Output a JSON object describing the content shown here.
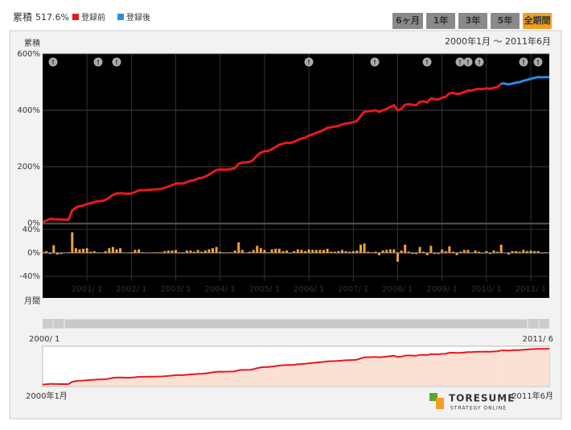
{
  "header": {
    "label": "累積",
    "value": "517.6%"
  },
  "buttons": [
    "6ヶ月",
    "1年",
    "3年",
    "5年",
    "全期間"
  ],
  "active_button": 4,
  "chart_data": [
    {
      "type": "line",
      "subtitle": "2000年1月 〜 2011年6月",
      "y_label": "累積",
      "categories": [
        null,
        null,
        null,
        null,
        null,
        null,
        null,
        null,
        null,
        null,
        null,
        null,
        "2001/ 1",
        null,
        null,
        null,
        null,
        null,
        null,
        null,
        null,
        null,
        null,
        null,
        "2002/ 1",
        null,
        null,
        null,
        null,
        null,
        null,
        null,
        null,
        null,
        null,
        null,
        "2003/ 1",
        null,
        null,
        null,
        null,
        null,
        null,
        null,
        null,
        null,
        null,
        null,
        "2004/ 1",
        null,
        null,
        null,
        null,
        null,
        null,
        null,
        null,
        null,
        null,
        null,
        "2005/ 1",
        null,
        null,
        null,
        null,
        null,
        null,
        null,
        null,
        null,
        null,
        null,
        "2006/ 1",
        null,
        null,
        null,
        null,
        null,
        null,
        null,
        null,
        null,
        null,
        null,
        "2007/ 1",
        null,
        null,
        null,
        null,
        null,
        null,
        null,
        null,
        null,
        null,
        null,
        "2008/ 1",
        null,
        null,
        null,
        null,
        null,
        null,
        null,
        null,
        null,
        null,
        null,
        "2009/ 1",
        null,
        null,
        null,
        null,
        null,
        null,
        null,
        null,
        null,
        null,
        null,
        "2010/ 1",
        null,
        null,
        null,
        null,
        null,
        null,
        null,
        null,
        null,
        null,
        null,
        "2011/ 1",
        null,
        null,
        null,
        null,
        null
      ],
      "series": [
        {
          "name": "登録前",
          "color": "#e8191e",
          "values": [
            5,
            8,
            15,
            14,
            13,
            12,
            12,
            11,
            45,
            55,
            60,
            62,
            68,
            70,
            75,
            78,
            78,
            82,
            90,
            100,
            105,
            106,
            105,
            104,
            105,
            110,
            116,
            117,
            117,
            118,
            119,
            120,
            121,
            125,
            130,
            134,
            140,
            141,
            140,
            145,
            150,
            152,
            158,
            160,
            165,
            172,
            180,
            188,
            190,
            189,
            190,
            191,
            195,
            210,
            215,
            215,
            217,
            225,
            240,
            250,
            255,
            256,
            262,
            270,
            278,
            282,
            285,
            284,
            288,
            295,
            300,
            303,
            310,
            315,
            320,
            325,
            330,
            338,
            340,
            342,
            345,
            350,
            353,
            355,
            358,
            362,
            380,
            395,
            397,
            398,
            400,
            395,
            400,
            405,
            412,
            418,
            400,
            405,
            420,
            422,
            420,
            418,
            430,
            432,
            428,
            442,
            440,
            438,
            445,
            448,
            460,
            462,
            458,
            460,
            465,
            470,
            470,
            474,
            476,
            475,
            478,
            476,
            480,
            482,
            495,
            null,
            null,
            null,
            null,
            null,
            null,
            null,
            null,
            null,
            null,
            null,
            null,
            null
          ]
        },
        {
          "name": "登録後",
          "color": "#2a8de0",
          "values": [
            null,
            null,
            null,
            null,
            null,
            null,
            null,
            null,
            null,
            null,
            null,
            null,
            null,
            null,
            null,
            null,
            null,
            null,
            null,
            null,
            null,
            null,
            null,
            null,
            null,
            null,
            null,
            null,
            null,
            null,
            null,
            null,
            null,
            null,
            null,
            null,
            null,
            null,
            null,
            null,
            null,
            null,
            null,
            null,
            null,
            null,
            null,
            null,
            null,
            null,
            null,
            null,
            null,
            null,
            null,
            null,
            null,
            null,
            null,
            null,
            null,
            null,
            null,
            null,
            null,
            null,
            null,
            null,
            null,
            null,
            null,
            null,
            null,
            null,
            null,
            null,
            null,
            null,
            null,
            null,
            null,
            null,
            null,
            null,
            null,
            null,
            null,
            null,
            null,
            null,
            null,
            null,
            null,
            null,
            null,
            null,
            null,
            null,
            null,
            null,
            null,
            null,
            null,
            null,
            null,
            null,
            null,
            null,
            null,
            null,
            null,
            null,
            null,
            null,
            null,
            null,
            null,
            null,
            null,
            null,
            null,
            null,
            null,
            null,
            495,
            495,
            492,
            495,
            498,
            500,
            505,
            508,
            512,
            515,
            518,
            517,
            518,
            517.6
          ]
        }
      ],
      "ylim": [
        0,
        600
      ],
      "yticks": [
        {
          "value": 600,
          "label": "600%"
        },
        {
          "value": 400,
          "label": "400%"
        },
        {
          "value": 200,
          "label": "200%"
        },
        {
          "value": 0,
          "label": "0%"
        }
      ],
      "grid": true
    },
    {
      "type": "bar",
      "y_label": "月間",
      "color": "#f0a040",
      "values": [
        2,
        3,
        -2,
        13,
        -3,
        -2,
        0,
        1,
        35,
        8,
        6,
        7,
        8,
        2,
        3,
        1,
        0,
        3,
        8,
        10,
        6,
        8,
        0,
        0,
        1,
        5,
        6,
        1,
        0,
        0,
        1,
        1,
        1,
        3,
        4,
        4,
        5,
        1,
        -1,
        4,
        4,
        2,
        5,
        2,
        4,
        6,
        8,
        10,
        2,
        -1,
        1,
        1,
        4,
        18,
        5,
        0,
        2,
        5,
        12,
        8,
        5,
        1,
        6,
        7,
        7,
        3,
        4,
        -1,
        3,
        6,
        5,
        3,
        6,
        5,
        5,
        5,
        5,
        7,
        2,
        2,
        3,
        5,
        3,
        2,
        3,
        4,
        14,
        16,
        2,
        1,
        2,
        -4,
        4,
        5,
        6,
        6,
        -15,
        4,
        14,
        2,
        -2,
        -2,
        10,
        2,
        -4,
        12,
        -2,
        -2,
        6,
        3,
        11,
        2,
        -4,
        2,
        5,
        5,
        0,
        4,
        2,
        -1,
        3,
        -2,
        4,
        2,
        14,
        0,
        -3,
        3,
        3,
        2,
        5,
        3,
        4,
        3,
        3,
        -1,
        1,
        0
      ],
      "ylim": [
        -48,
        48
      ],
      "yticks": [
        {
          "value": 40,
          "label": "40%"
        },
        {
          "value": 0,
          "label": "0%"
        },
        {
          "value": -40,
          "label": "-40%"
        }
      ],
      "grid": true
    }
  ],
  "navigator": {
    "start_label": "2000/ 1",
    "end_label": "2011/ 6",
    "start_date": "2000年1月",
    "end_date": "2011年6月",
    "color": "#e8191e",
    "fill": "#fbe0d4"
  },
  "logo": {
    "name": "TORESUME",
    "tagline": "STRATEGY ONLINE"
  }
}
